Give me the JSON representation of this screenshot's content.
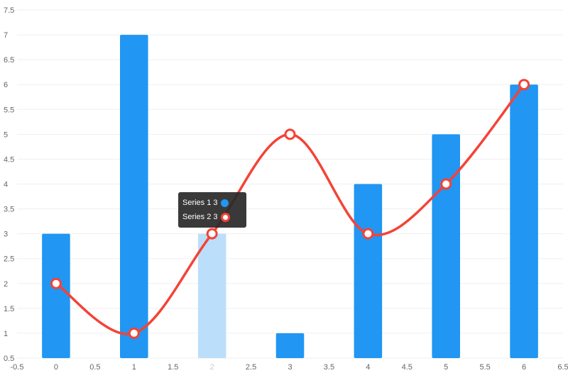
{
  "chart_data": {
    "type": "bar",
    "x": [
      0,
      1,
      2,
      3,
      4,
      5,
      6
    ],
    "xlim": [
      -0.5,
      6.5
    ],
    "ylim": [
      0.5,
      7.5
    ],
    "xticks": [
      -0.5,
      0,
      0.5,
      1,
      1.5,
      2,
      2.5,
      3,
      3.5,
      4,
      4.5,
      5,
      5.5,
      6,
      6.5
    ],
    "yticks": [
      0.5,
      1,
      1.5,
      2,
      2.5,
      3,
      3.5,
      4,
      4.5,
      5,
      5.5,
      6,
      6.5,
      7,
      7.5
    ],
    "grid": "horizontal",
    "highlighted_x": 2,
    "series": [
      {
        "name": "Series 1",
        "type": "bar",
        "color": "#2196f3",
        "highlight_color": "#bbdefb",
        "values": [
          3,
          7,
          3,
          1,
          4,
          5,
          6
        ]
      },
      {
        "name": "Series 2",
        "type": "line",
        "smooth": true,
        "color": "#f44336",
        "values": [
          2,
          1,
          3,
          5,
          3,
          4,
          6
        ]
      }
    ]
  },
  "tooltip": {
    "rows": [
      {
        "text": "Series 1 3",
        "marker_color": "#2196f3"
      },
      {
        "text": "Series 2 3",
        "marker_color": "#f44336"
      }
    ]
  }
}
